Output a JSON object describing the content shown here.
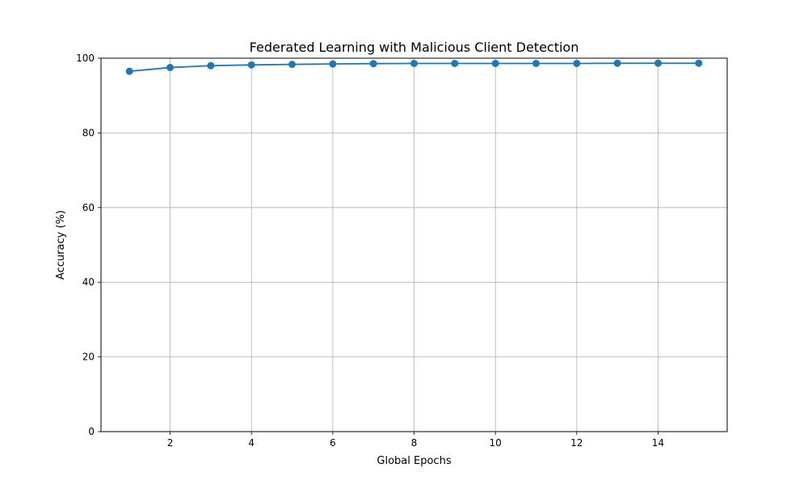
{
  "chart_data": {
    "type": "line",
    "title": "Federated Learning with Malicious Client Detection",
    "xlabel": "Global Epochs",
    "ylabel": "Accuracy (%)",
    "xlim": [
      0.3,
      15.7
    ],
    "ylim": [
      0,
      100
    ],
    "x_ticks": [
      2,
      4,
      6,
      8,
      10,
      12,
      14
    ],
    "y_ticks": [
      0,
      20,
      40,
      60,
      80,
      100
    ],
    "grid": true,
    "legend": null,
    "series": [
      {
        "x": [
          1,
          2,
          3,
          4,
          5,
          6,
          7,
          8,
          9,
          10,
          11,
          12,
          13,
          14,
          15
        ],
        "y": [
          96.5,
          97.5,
          98.0,
          98.2,
          98.35,
          98.45,
          98.55,
          98.6,
          98.6,
          98.6,
          98.6,
          98.6,
          98.65,
          98.65,
          98.65
        ],
        "color": "#1f77b4",
        "marker": "circle"
      }
    ]
  }
}
